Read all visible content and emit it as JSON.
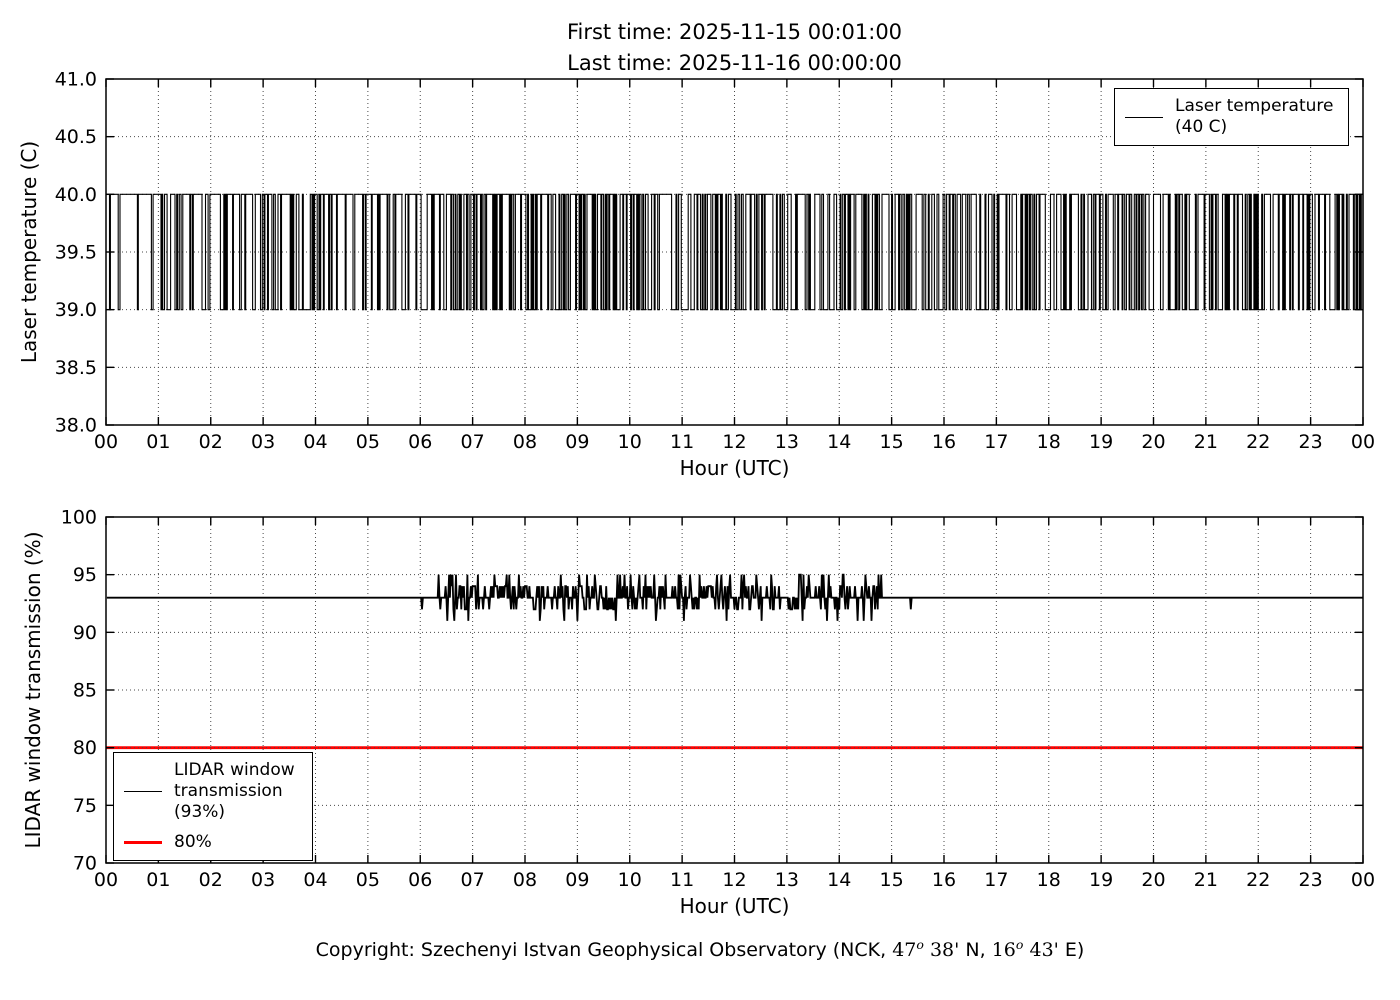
{
  "figure": {
    "background": "#ffffff"
  },
  "title": {
    "line1": "First time: 2025-11-15 00:01:00",
    "line2": "Last time: 2025-11-16 00:00:00"
  },
  "chart_data": [
    {
      "type": "line",
      "title": "",
      "xlabel": "Hour (UTC)",
      "ylabel": "Laser temperature (C)",
      "xlim": [
        0,
        24
      ],
      "ylim": [
        38.0,
        41.0
      ],
      "grid": "dotted",
      "xticks": [
        "00",
        "01",
        "02",
        "03",
        "04",
        "05",
        "06",
        "07",
        "08",
        "09",
        "10",
        "11",
        "12",
        "13",
        "14",
        "15",
        "16",
        "17",
        "18",
        "19",
        "20",
        "21",
        "22",
        "23",
        "00"
      ],
      "yticks": {
        "values": [
          38.0,
          38.5,
          39.0,
          39.5,
          40.0,
          40.5,
          41.0
        ],
        "labels": [
          "38.0",
          "38.5",
          "39.0",
          "39.5",
          "40.0",
          "40.5",
          "41.0"
        ]
      },
      "legend": {
        "position": "upper right",
        "entries": [
          {
            "lines": [
              "Laser temperature",
              "(40 C)"
            ],
            "color": "#000000",
            "line_width": 1.6
          }
        ]
      },
      "series": [
        {
          "name": "Laser temperature (40 C)",
          "color": "#000000",
          "line_width": 1.1,
          "style": "step",
          "description": "Laser temperature toggles rapidly (minute cadence) between 39 C and 40 C for the entire 24 h; denser toggling after ~07:00. Nominal setpoint 40 C.",
          "generator": {
            "kind": "binary_markov_step",
            "levels": [
              39,
              40
            ],
            "start_level": 40,
            "p_drop_early": 0.22,
            "p_drop_late": 0.34,
            "split_hour": 7,
            "p_rise": 0.5,
            "samples_per_hour": 60,
            "seed": 20251115
          }
        }
      ]
    },
    {
      "type": "line",
      "title": "",
      "xlabel": "Hour (UTC)",
      "ylabel": "LIDAR window transmission (%)",
      "xlim": [
        0,
        24
      ],
      "ylim": [
        70,
        100
      ],
      "grid": "dotted",
      "xticks": [
        "00",
        "01",
        "02",
        "03",
        "04",
        "05",
        "06",
        "07",
        "08",
        "09",
        "10",
        "11",
        "12",
        "13",
        "14",
        "15",
        "16",
        "17",
        "18",
        "19",
        "20",
        "21",
        "22",
        "23",
        "00"
      ],
      "yticks": {
        "values": [
          70,
          75,
          80,
          85,
          90,
          95,
          100
        ],
        "labels": [
          "70",
          "75",
          "80",
          "85",
          "90",
          "95",
          "100"
        ]
      },
      "legend": {
        "position": "lower left",
        "entries": [
          {
            "lines": [
              "LIDAR window",
              "transmission",
              "(93%)"
            ],
            "color": "#000000",
            "line_width": 1.6
          },
          {
            "lines": [
              "80%"
            ],
            "color": "#ff0000",
            "line_width": 3
          }
        ]
      },
      "series": [
        {
          "name": "LIDAR window transmission (93%)",
          "color": "#000000",
          "line_width": 1.8,
          "style": "line",
          "description": "Flat at 93% all day except daytime noise ~06:20-14:50 fluctuating between 91% and 95%; brief isolated dips to 92% near 06:00 and 15:22.",
          "generator": {
            "kind": "baseline_noise",
            "baseline": 93,
            "noise_window_hours": [
              6.35,
              14.85
            ],
            "noise_min": 91,
            "noise_max": 95,
            "isolated_dips": [
              {
                "hour": 6.03,
                "value": 92
              },
              {
                "hour": 15.37,
                "value": 92
              }
            ],
            "samples_per_hour": 60,
            "seed": 424344
          }
        },
        {
          "name": "80%",
          "color": "#ff0000",
          "line_width": 2.8,
          "style": "constant",
          "constant": 80
        }
      ]
    }
  ],
  "copyright": {
    "segments": [
      {
        "text": "Copyright: Szechenyi Istvan Geophysical Observatory (NCK, ",
        "style": "sans"
      },
      {
        "text": "47",
        "style": "math"
      },
      {
        "text": "o",
        "style": "sup"
      },
      {
        "text": " 38'",
        "style": "math"
      },
      {
        "text": " N, ",
        "style": "sans"
      },
      {
        "text": "16",
        "style": "math"
      },
      {
        "text": "o",
        "style": "sup"
      },
      {
        "text": " 43'",
        "style": "math"
      },
      {
        "text": " E)",
        "style": "sans"
      }
    ]
  }
}
